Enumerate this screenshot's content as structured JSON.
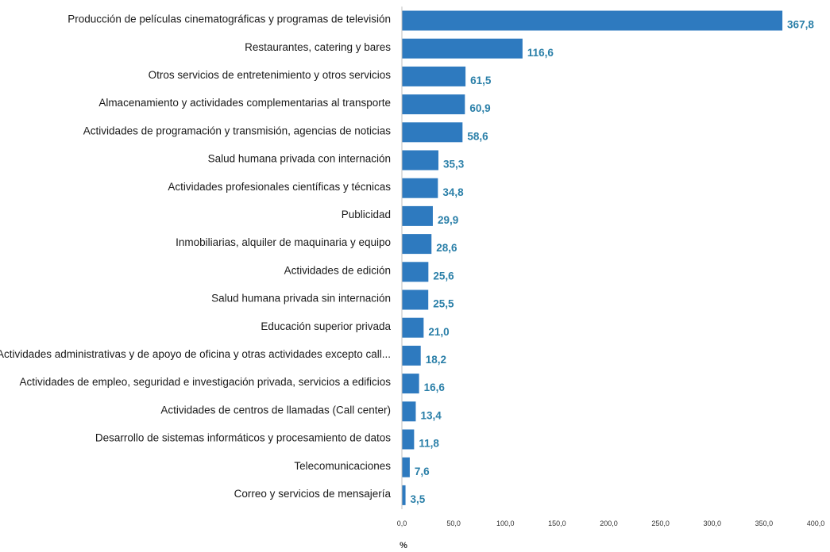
{
  "chart_data": {
    "type": "bar",
    "orientation": "horizontal",
    "title": "",
    "xlabel": "%",
    "ylabel": "",
    "xlim": [
      0,
      400
    ],
    "ticks": [
      0,
      50,
      100,
      150,
      200,
      250,
      300,
      350,
      400
    ],
    "tick_labels": [
      "0,0",
      "50,0",
      "100,0",
      "150,0",
      "200,0",
      "250,0",
      "300,0",
      "350,0",
      "400,0"
    ],
    "bar_color": "#2e7abf",
    "value_label_color": "#2a7fa8",
    "grid": false,
    "legend": "none",
    "categories": [
      "Producción de películas cinematográficas y programas de televisión",
      "Restaurantes, catering y bares",
      "Otros servicios de entretenimiento y otros servicios",
      "Almacenamiento y actividades complementarias al transporte",
      "Actividades de programación y transmisión,  agencias de noticias",
      "Salud humana privada con internación",
      "Actividades profesionales científicas y técnicas",
      "Publicidad",
      "Inmobiliarias, alquiler de maquinaria y equipo",
      "Actividades de edición",
      "Salud humana privada sin internación",
      "Educación superior privada",
      "Actividades administrativas y de apoyo de oficina y otras actividades excepto call...",
      "Actividades de empleo, seguridad e investigación privada, servicios a edificios",
      "Actividades de centros de llamadas (Call center)",
      "Desarrollo de sistemas informáticos y procesamiento de datos",
      "Telecomunicaciones",
      "Correo y servicios de mensajería"
    ],
    "values": [
      367.8,
      116.6,
      61.5,
      60.9,
      58.6,
      35.3,
      34.8,
      29.9,
      28.6,
      25.6,
      25.5,
      21.0,
      18.2,
      16.6,
      13.4,
      11.8,
      7.6,
      3.5
    ],
    "value_labels": [
      "367,8",
      "116,6",
      "61,5",
      "60,9",
      "58,6",
      "35,3",
      "34,8",
      "29,9",
      "28,6",
      "25,6",
      "25,5",
      "21,0",
      "18,2",
      "16,6",
      "13,4",
      "11,8",
      "7,6",
      "3,5"
    ]
  }
}
